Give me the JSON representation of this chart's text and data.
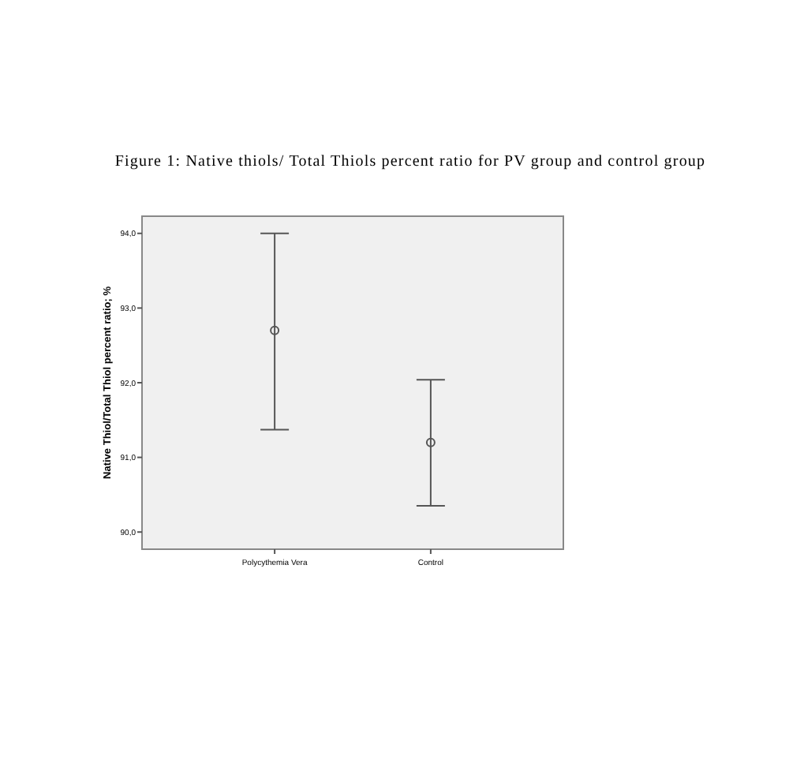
{
  "chart_data": {
    "type": "scatter",
    "title": "Figure 1: Native thiols/ Total Thiols percent ratio for PV group and control group",
    "ylabel": "Native Thiol/Total Thiol percent ratio; %",
    "categories": [
      "Polycythemia Vera",
      "Control"
    ],
    "values": [
      92.7,
      91.2
    ],
    "errors": [
      [
        91.37,
        94.0
      ],
      [
        90.35,
        92.04
      ]
    ],
    "color": "#555555",
    "marker": "circle",
    "ylim": [
      89.77,
      94.23
    ],
    "yticks": [
      {
        "value": 90,
        "label": "90,0"
      },
      {
        "value": 91,
        "label": "91,0"
      },
      {
        "value": 92,
        "label": "92,0"
      },
      {
        "value": 93,
        "label": "93,0"
      },
      {
        "value": 94,
        "label": "94,0"
      }
    ],
    "grid": false
  }
}
